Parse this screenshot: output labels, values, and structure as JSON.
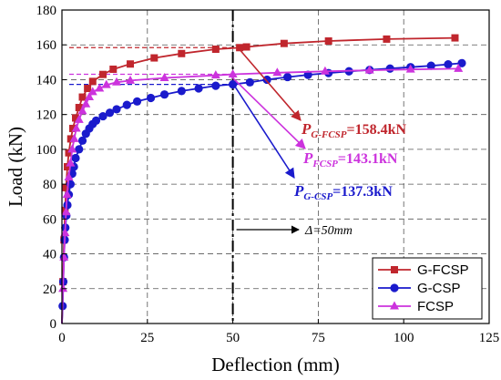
{
  "chart_data": {
    "type": "line",
    "xlabel": "Deflection (mm)",
    "ylabel": "Load (kN)",
    "xlim": [
      0,
      125
    ],
    "ylim": [
      0,
      180
    ],
    "x_ticks": [
      "0",
      "25",
      "50",
      "75",
      "100",
      "125"
    ],
    "y_ticks": [
      "0",
      "20",
      "40",
      "60",
      "80",
      "100",
      "120",
      "140",
      "160",
      "180"
    ],
    "grid": "dashed",
    "legend_position": "bottom-right",
    "series": [
      {
        "name": "G-FCSP",
        "color": "#c0262d",
        "marker": "square",
        "points": [
          [
            0,
            0
          ],
          [
            0.3,
            24
          ],
          [
            0.6,
            48
          ],
          [
            0.9,
            65
          ],
          [
            1.2,
            78
          ],
          [
            1.6,
            90
          ],
          [
            2,
            98
          ],
          [
            2.6,
            106
          ],
          [
            3.2,
            112
          ],
          [
            4,
            118
          ],
          [
            5,
            124
          ],
          [
            6,
            130
          ],
          [
            7.5,
            135
          ],
          [
            9,
            139
          ],
          [
            12,
            143
          ],
          [
            15,
            146
          ],
          [
            20,
            149
          ],
          [
            27,
            152.5
          ],
          [
            35,
            155
          ],
          [
            45,
            157.5
          ],
          [
            52,
            158.4
          ],
          [
            54,
            158.8
          ],
          [
            65,
            160.8
          ],
          [
            78,
            162.2
          ],
          [
            95,
            163.3
          ],
          [
            115,
            164
          ]
        ]
      },
      {
        "name": "G-CSP",
        "color": "#1a1acc",
        "marker": "circle",
        "points": [
          [
            0,
            0
          ],
          [
            0.2,
            10
          ],
          [
            0.4,
            24
          ],
          [
            0.6,
            38
          ],
          [
            0.8,
            48
          ],
          [
            1,
            55
          ],
          [
            1.3,
            62
          ],
          [
            1.6,
            68
          ],
          [
            2,
            74
          ],
          [
            2.5,
            80
          ],
          [
            3,
            86
          ],
          [
            3.5,
            90
          ],
          [
            4,
            95
          ],
          [
            5,
            100
          ],
          [
            6,
            105
          ],
          [
            7,
            109
          ],
          [
            8,
            112
          ],
          [
            9,
            114.5
          ],
          [
            10,
            116.5
          ],
          [
            12,
            119
          ],
          [
            14,
            121
          ],
          [
            16,
            123
          ],
          [
            19,
            125.5
          ],
          [
            22,
            127.5
          ],
          [
            26,
            129.5
          ],
          [
            30,
            131.5
          ],
          [
            35,
            133.5
          ],
          [
            40,
            135
          ],
          [
            45,
            136.5
          ],
          [
            50,
            137.3
          ],
          [
            55,
            138.5
          ],
          [
            60,
            140
          ],
          [
            66,
            141.5
          ],
          [
            72,
            142.8
          ],
          [
            78,
            143.8
          ],
          [
            84,
            144.8
          ],
          [
            90,
            145.6
          ],
          [
            96,
            146.4
          ],
          [
            102,
            147.2
          ],
          [
            108,
            148
          ],
          [
            113,
            148.8
          ],
          [
            117,
            149.5
          ]
        ]
      },
      {
        "name": "FCSP",
        "color": "#cc33dd",
        "marker": "triangle",
        "points": [
          [
            0,
            0
          ],
          [
            0.3,
            20
          ],
          [
            0.6,
            38
          ],
          [
            0.9,
            52
          ],
          [
            1.2,
            64
          ],
          [
            1.5,
            74
          ],
          [
            2,
            84
          ],
          [
            2.5,
            92
          ],
          [
            3,
            100
          ],
          [
            3.6,
            106
          ],
          [
            4.2,
            112
          ],
          [
            5,
            117
          ],
          [
            6,
            122
          ],
          [
            7,
            126
          ],
          [
            8,
            130
          ],
          [
            9,
            133
          ],
          [
            11,
            135
          ],
          [
            13,
            137
          ],
          [
            16,
            138.5
          ],
          [
            20,
            139.5
          ],
          [
            30,
            141
          ],
          [
            45,
            142.5
          ],
          [
            50,
            143.1
          ],
          [
            63,
            144
          ],
          [
            77,
            144.8
          ],
          [
            90,
            145.4
          ],
          [
            102,
            145.9
          ],
          [
            116,
            146.3
          ]
        ]
      }
    ],
    "reference_line": {
      "x": 50
    },
    "annotations": [
      {
        "prefix": "P",
        "sub": "G-FCSP",
        "value": "=158.4kN",
        "color": "#c0262d",
        "level": 158.4
      },
      {
        "prefix": "P",
        "sub": "FCSP",
        "value": "=143.1kN",
        "color": "#cc33dd",
        "level": 143.1
      },
      {
        "prefix": "P",
        "sub": "G-CSP",
        "value": "=137.3kN",
        "color": "#1a1acc",
        "level": 137.3
      }
    ],
    "delta_label": "Δ=50mm"
  }
}
